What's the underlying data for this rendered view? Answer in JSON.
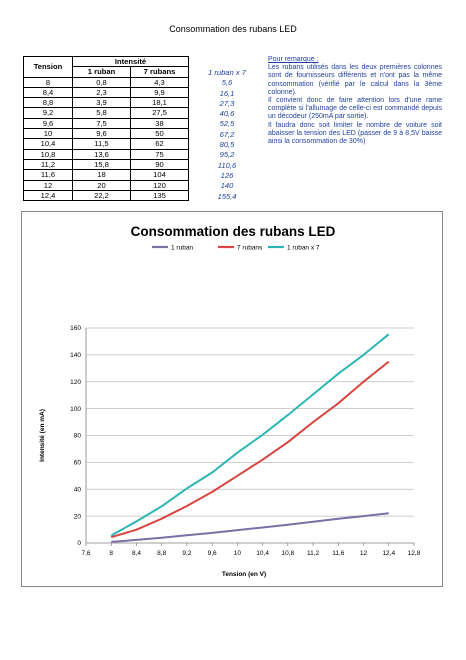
{
  "page": {
    "title": "Consommation des rubans LED"
  },
  "table": {
    "header": {
      "tension": "Tension",
      "intensite": "Intensité",
      "ruban1": "1 ruban",
      "rubans7": "7 rubans"
    },
    "rows": [
      [
        "8",
        "0,8",
        "4,3"
      ],
      [
        "8,4",
        "2,3",
        "9,9"
      ],
      [
        "8,8",
        "3,9",
        "18,1"
      ],
      [
        "9,2",
        "5,8",
        "27,5"
      ],
      [
        "9,6",
        "7,5",
        "38"
      ],
      [
        "10",
        "9,6",
        "50"
      ],
      [
        "10,4",
        "11,5",
        "62"
      ],
      [
        "10,8",
        "13,6",
        "75"
      ],
      [
        "11,2",
        "15,8",
        "90"
      ],
      [
        "11,6",
        "18",
        "104"
      ],
      [
        "12",
        "20",
        "120"
      ],
      [
        "12,4",
        "22,2",
        "135"
      ]
    ]
  },
  "ruban_x7": {
    "header": "1 ruban x 7",
    "values": [
      "5,6",
      "16,1",
      "27,3",
      "40,6",
      "52,5",
      "67,2",
      "80,5",
      "95,2",
      "110,6",
      "126",
      "140",
      "155,4"
    ]
  },
  "remark": {
    "heading": "Pour remarque :",
    "paragraphs": [
      "Les rubans utilisés dans les deux premières colonnes sont de fournisseurs différents et n'ont pas la même consommation (vérifié par le calcul dans la 3ème colonne).",
      "Il convient donc de faire attention lors d'une rame complète si l'allumage de celle-ci est commandé depuis un décodeur (250mA par sortie).",
      "Il faudra donc soit limiter le nombre de voiture soit abaisser la tension des LED (passer de 9 à 8,5V baisse ainsi la consommation de 30%)"
    ]
  },
  "chart_data": {
    "type": "line",
    "title": "Consommation des rubans LED",
    "xlabel": "Tension (en V)",
    "ylabel": "Intensité (en mA)",
    "xlim": [
      7.6,
      12.8
    ],
    "ylim": [
      0,
      160
    ],
    "xticks": [
      "7,6",
      "8",
      "8,4",
      "8,8",
      "9,2",
      "9,6",
      "10",
      "10,4",
      "10,8",
      "11,2",
      "11,6",
      "12",
      "12,4",
      "12,8"
    ],
    "yticks": [
      "0",
      "20",
      "40",
      "60",
      "80",
      "100",
      "120",
      "140",
      "160"
    ],
    "grid": true,
    "legend": "top",
    "x": [
      8,
      8.4,
      8.8,
      9.2,
      9.6,
      10,
      10.4,
      10.8,
      11.2,
      11.6,
      12,
      12.4
    ],
    "series": [
      {
        "name": "1 ruban",
        "color": "#7b6fa6",
        "values": [
          0.8,
          2.3,
          3.9,
          5.8,
          7.5,
          9.6,
          11.5,
          13.6,
          15.8,
          18,
          20,
          22.2
        ]
      },
      {
        "name": "7 rubans",
        "color": "#d8443f",
        "values": [
          4.3,
          9.9,
          18.1,
          27.5,
          38,
          50,
          62,
          75,
          90,
          104,
          120,
          135
        ]
      },
      {
        "name": "1 ruban x 7",
        "color": "#2bb5b5",
        "values": [
          5.6,
          16.1,
          27.3,
          40.6,
          52.5,
          67.2,
          80.5,
          95.2,
          110.6,
          126,
          140,
          155.4
        ]
      }
    ]
  }
}
